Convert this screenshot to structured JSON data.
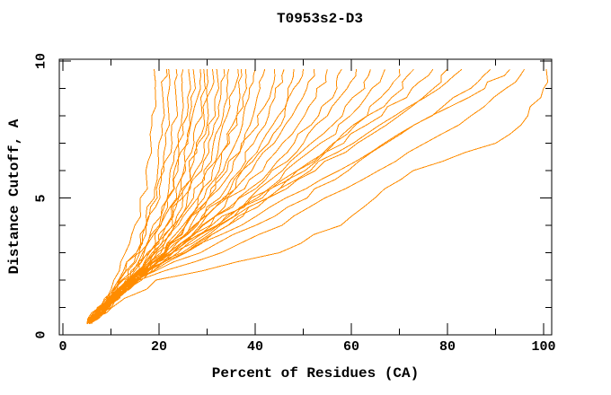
{
  "chart_data": {
    "type": "line",
    "title": "T0953s2-D3",
    "xlabel": "Percent of Residues (CA)",
    "ylabel": "Distance Cutoff, A",
    "xlim": [
      -0.75,
      101.7
    ],
    "ylim": [
      0,
      10.07
    ],
    "x_major_ticks": [
      0,
      20,
      40,
      60,
      80,
      100
    ],
    "x_minor_step": 10,
    "y_major_ticks": [
      0,
      5,
      10
    ],
    "y_minor_step": 1,
    "grid": false,
    "legend": "none",
    "series_color": "#FF8C00",
    "axis_color": "#000000",
    "cutoffs": [
      0.4,
      1,
      2,
      3,
      4,
      5,
      6,
      7,
      8,
      9,
      9.7
    ],
    "series_percents_at_cutoffs": [
      [
        5.5,
        10,
        20,
        45,
        57,
        65,
        73,
        90,
        97,
        100,
        100.5
      ],
      [
        5.5,
        9,
        16,
        33,
        45,
        55,
        66,
        76,
        85,
        93,
        96
      ],
      [
        5.5,
        8,
        13,
        25,
        37,
        47,
        57,
        67,
        77,
        87,
        93
      ],
      [
        6,
        9,
        15,
        28,
        40,
        50,
        59,
        68,
        76,
        84,
        89
      ],
      [
        5.5,
        8,
        14,
        24,
        33,
        42,
        51,
        60,
        69,
        78,
        83
      ],
      [
        5.5,
        8.5,
        15,
        25,
        34,
        43,
        52,
        61,
        70,
        77,
        80
      ],
      [
        5,
        7.5,
        13,
        22,
        31,
        40,
        49,
        58,
        66,
        73,
        77
      ],
      [
        5.5,
        8,
        14,
        23,
        32,
        41,
        49,
        57,
        64,
        70,
        73
      ],
      [
        5.5,
        9,
        16,
        25,
        34,
        42,
        50,
        57,
        63,
        68,
        70
      ],
      [
        5,
        8,
        14,
        23,
        32,
        40,
        47,
        54,
        60,
        65,
        67
      ],
      [
        5.5,
        8.5,
        15,
        24,
        32,
        39,
        46,
        52,
        58,
        62,
        64
      ],
      [
        5,
        8,
        14,
        22,
        30,
        37,
        44,
        50,
        55,
        59,
        61
      ],
      [
        5.5,
        9,
        15,
        23,
        30,
        37,
        43,
        48,
        53,
        56.5,
        58
      ],
      [
        5,
        8,
        14,
        22,
        29,
        35,
        41,
        46,
        50,
        53.5,
        55
      ],
      [
        5.5,
        9,
        15,
        22,
        28,
        34,
        39,
        44,
        48,
        50.5,
        52
      ],
      [
        5,
        8.5,
        15,
        22,
        28,
        33,
        38,
        42,
        46,
        48.5,
        50
      ],
      [
        5.5,
        9,
        16,
        23,
        29,
        34,
        38,
        42,
        45,
        47,
        48
      ],
      [
        5,
        8,
        14,
        21,
        27,
        32,
        36,
        40,
        43,
        45,
        46
      ],
      [
        5.5,
        9,
        15,
        21,
        27,
        31,
        35,
        38,
        41,
        43,
        44
      ],
      [
        5,
        8.5,
        15,
        21,
        26,
        30,
        34,
        37,
        39.5,
        41,
        42
      ],
      [
        5.5,
        9,
        15,
        21,
        26,
        30,
        33,
        36,
        38,
        39.5,
        40
      ],
      [
        5,
        8,
        14,
        20,
        25,
        29,
        32,
        34.5,
        36.5,
        37.5,
        38
      ],
      [
        5.5,
        9.5,
        16,
        21,
        25,
        28.5,
        31.5,
        34,
        35.5,
        36.5,
        37
      ],
      [
        5,
        8,
        14,
        19.5,
        24,
        27.5,
        30.5,
        33,
        34.5,
        35.5,
        36
      ],
      [
        5.5,
        9,
        15,
        20,
        24,
        27,
        29.5,
        31.5,
        33,
        34,
        34.5
      ],
      [
        5,
        8.5,
        14,
        19,
        23,
        26,
        28.5,
        30.5,
        32,
        32.7,
        33
      ],
      [
        5.5,
        9,
        15,
        19.5,
        23,
        25.5,
        28,
        29.8,
        31,
        31.7,
        32
      ],
      [
        5,
        8,
        13.5,
        18,
        21.5,
        24.5,
        27,
        28.8,
        30,
        30.7,
        31
      ],
      [
        5.5,
        9,
        14.5,
        19,
        22,
        24.5,
        26.5,
        28,
        29,
        29.7,
        30
      ],
      [
        5,
        8.5,
        14,
        18,
        21,
        23.5,
        25.5,
        27,
        28.2,
        28.8,
        29
      ],
      [
        5.5,
        9,
        14,
        17.5,
        20.5,
        23,
        24.8,
        26.2,
        27.2,
        27.8,
        28
      ],
      [
        5,
        8,
        13,
        17,
        20,
        22.2,
        24,
        25.4,
        26.3,
        26.8,
        27
      ],
      [
        5.5,
        9,
        13.5,
        17,
        19.7,
        21.8,
        23.4,
        24.6,
        25.4,
        25.8,
        26
      ],
      [
        5,
        8.5,
        13,
        16.5,
        19,
        21,
        22.6,
        23.7,
        24.4,
        24.8,
        25
      ],
      [
        5.5,
        8.5,
        12.5,
        15.5,
        18,
        19.8,
        21.2,
        22.3,
        23,
        23.3,
        23.5
      ],
      [
        5,
        8,
        12,
        15,
        17.2,
        18.9,
        20.2,
        21.1,
        21.6,
        21.9,
        22
      ],
      [
        5.5,
        8.5,
        12,
        14.8,
        16.8,
        18.3,
        19.4,
        20.2,
        20.7,
        20.9,
        21
      ],
      [
        5,
        7.5,
        10.5,
        13,
        15,
        16.5,
        17.6,
        18.3,
        18.8,
        18.95,
        19
      ]
    ]
  }
}
